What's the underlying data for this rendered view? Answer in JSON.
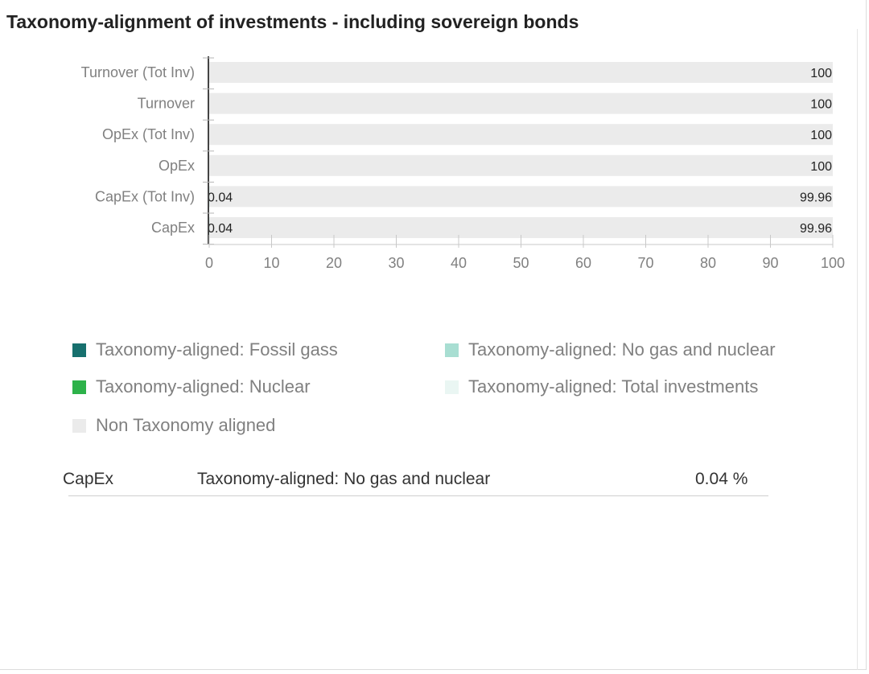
{
  "title": "Taxonomy-alignment of investments - including sovereign bonds",
  "colors": {
    "fossil_gas": "#17706E",
    "no_gas_nuclear": "#A8DED2",
    "nuclear": "#2DB24A",
    "total_investments": "#EAF6F3",
    "non_aligned": "#EBEBEB"
  },
  "legend": [
    {
      "label": "Taxonomy-aligned: Fossil gass",
      "color_key": "fossil_gas"
    },
    {
      "label": "Taxonomy-aligned: No gas and nuclear",
      "color_key": "no_gas_nuclear"
    },
    {
      "label": "Taxonomy-aligned: Nuclear",
      "color_key": "nuclear"
    },
    {
      "label": "Taxonomy-aligned: Total investments",
      "color_key": "total_investments"
    },
    {
      "label": "Non Taxonomy aligned",
      "color_key": "non_aligned"
    }
  ],
  "chart_data": {
    "type": "bar",
    "orientation": "horizontal",
    "stacked": true,
    "categories": [
      "Turnover (Tot Inv)",
      "Turnover",
      "OpEx (Tot Inv)",
      "OpEx",
      "CapEx (Tot Inv)",
      "CapEx"
    ],
    "series": [
      {
        "name": "Taxonomy-aligned: No gas and nuclear",
        "color_key": "no_gas_nuclear",
        "values": [
          0,
          0,
          0,
          0,
          0.04,
          0.04
        ],
        "labels": [
          "",
          "",
          "",
          "",
          "0.04",
          "0.04"
        ]
      },
      {
        "name": "Non Taxonomy aligned",
        "color_key": "non_aligned",
        "values": [
          100,
          100,
          100,
          100,
          99.96,
          99.96
        ],
        "labels": [
          "100",
          "100",
          "100",
          "100",
          "99.96",
          "99.96"
        ]
      }
    ],
    "x_ticks": [
      "0",
      "10",
      "20",
      "30",
      "40",
      "50",
      "60",
      "70",
      "80",
      "90",
      "100"
    ],
    "xlim": [
      0,
      100
    ],
    "xlabel": "",
    "ylabel": "",
    "grid": false,
    "legend_position": "bottom"
  },
  "summary": {
    "category": "CapEx",
    "series": "Taxonomy-aligned: No gas and nuclear",
    "value": "0.04 %"
  }
}
